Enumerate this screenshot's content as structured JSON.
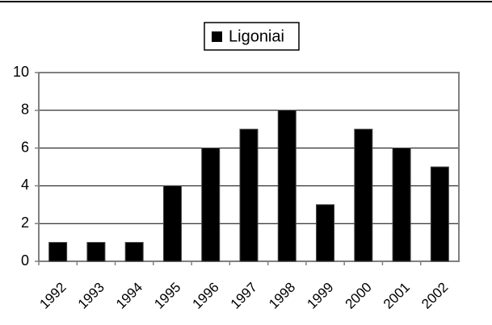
{
  "chart_data": {
    "type": "bar",
    "categories": [
      "1992",
      "1993",
      "1994",
      "1995",
      "1996",
      "1997",
      "1998",
      "1999",
      "2000",
      "2001",
      "2002"
    ],
    "series": [
      {
        "name": "Ligoniai",
        "color": "#000000",
        "values": [
          1,
          1,
          1,
          4,
          6,
          7,
          8,
          3,
          7,
          6,
          5
        ]
      }
    ],
    "ylim": [
      0,
      10
    ],
    "yticks": [
      0,
      2,
      4,
      6,
      8,
      10
    ],
    "grid": true,
    "legend": "top"
  }
}
